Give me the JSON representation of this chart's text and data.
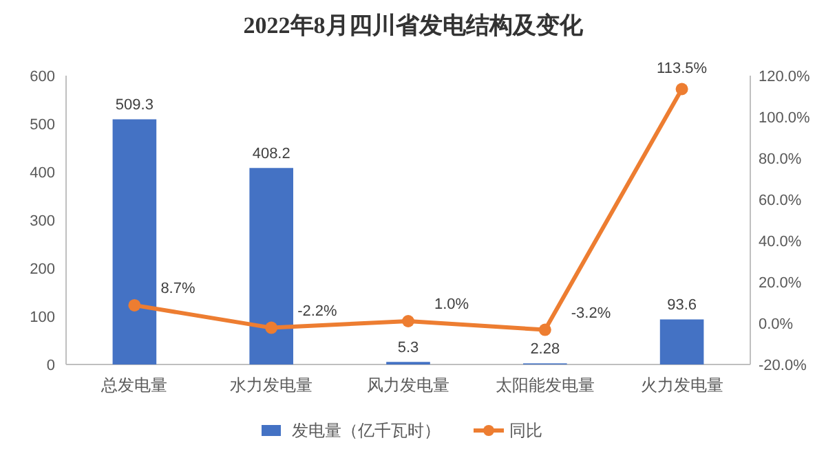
{
  "chart_data": {
    "type": "bar",
    "title": "2022年8月四川省发电结构及变化",
    "categories": [
      "总发电量",
      "水力发电量",
      "风力发电量",
      "太阳能发电量",
      "火力发电量"
    ],
    "series": [
      {
        "name": "发电量（亿千瓦时）",
        "color": "#4472c4",
        "values": [
          509.3,
          408.2,
          5.3,
          2.28,
          93.6
        ],
        "value_labels": [
          "509.3",
          "408.2",
          "5.3",
          "2.28",
          "93.6"
        ]
      },
      {
        "name": "同比",
        "type": "line",
        "axis": "y2",
        "color": "#ed7d31",
        "marker": "circle",
        "values": [
          8.7,
          -2.2,
          1.0,
          -3.2,
          113.5
        ],
        "value_labels": [
          "8.7%",
          "-2.2%",
          "1.0%",
          "-3.2%",
          "113.5%"
        ]
      }
    ],
    "ylim": [
      0,
      600
    ],
    "yticks": [
      0,
      100,
      200,
      300,
      400,
      500,
      600
    ],
    "y2lim": [
      -20,
      120
    ],
    "y2ticks": [
      {
        "value": -20,
        "label": "-20.0%"
      },
      {
        "value": 0,
        "label": "0.0%"
      },
      {
        "value": 20,
        "label": "20.0%"
      },
      {
        "value": 40,
        "label": "40.0%"
      },
      {
        "value": 60,
        "label": "60.0%"
      },
      {
        "value": 80,
        "label": "80.0%"
      },
      {
        "value": 100,
        "label": "100.0%"
      },
      {
        "value": 120,
        "label": "120.0%"
      }
    ],
    "legend": "bottom"
  }
}
